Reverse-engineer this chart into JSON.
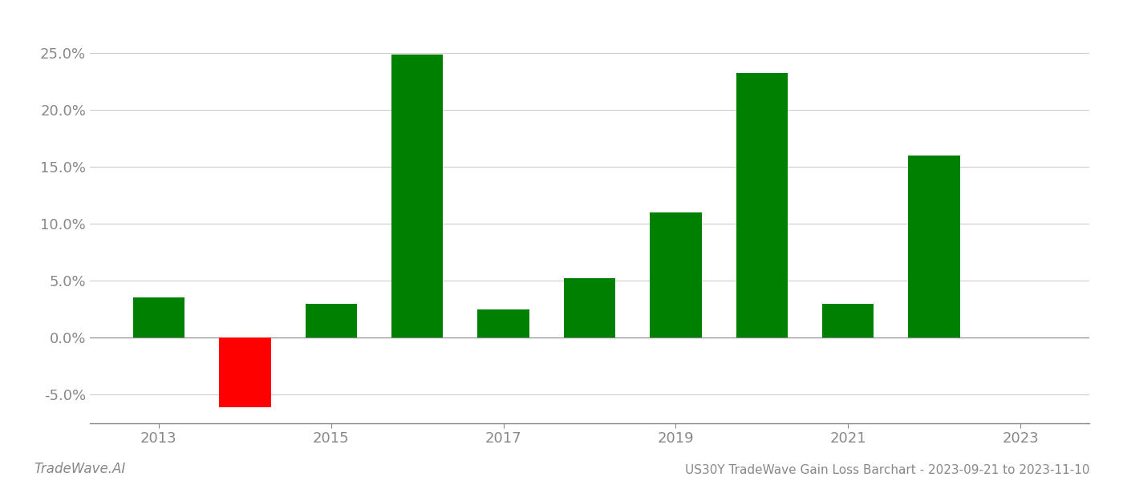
{
  "years": [
    2013,
    2014,
    2015,
    2016,
    2017,
    2018,
    2019,
    2020,
    2021,
    2022
  ],
  "values": [
    0.035,
    -0.061,
    0.03,
    0.248,
    0.025,
    0.052,
    0.11,
    0.232,
    0.03,
    0.16
  ],
  "colors": [
    "#008000",
    "#ff0000",
    "#008000",
    "#008000",
    "#008000",
    "#008000",
    "#008000",
    "#008000",
    "#008000",
    "#008000"
  ],
  "ylim": [
    -0.075,
    0.275
  ],
  "yticks": [
    -0.05,
    0.0,
    0.05,
    0.1,
    0.15,
    0.2,
    0.25
  ],
  "xticks": [
    2013,
    2015,
    2017,
    2019,
    2021,
    2023
  ],
  "xlim": [
    2012.2,
    2023.8
  ],
  "title": "US30Y TradeWave Gain Loss Barchart - 2023-09-21 to 2023-11-10",
  "watermark": "TradeWave.AI",
  "bar_width": 0.6,
  "background_color": "#ffffff",
  "grid_color": "#cccccc",
  "title_fontsize": 11,
  "tick_fontsize": 13,
  "watermark_fontsize": 12
}
